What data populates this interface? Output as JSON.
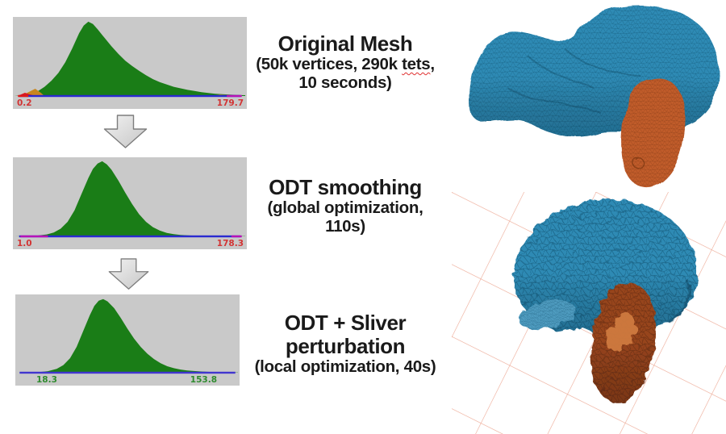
{
  "steps": [
    {
      "title1": "Original Mesh",
      "title2": "",
      "sub1_pre": "(50k vertices, 290k ",
      "sub1_word": "tets",
      "sub1_post": ",",
      "sub2": "10 seconds)"
    },
    {
      "title1": "ODT smoothing",
      "title2": "",
      "sub1_pre": "(global optimization,",
      "sub1_word": "",
      "sub1_post": "",
      "sub2": "110s)"
    },
    {
      "title1": "ODT + Sliver",
      "title2": "perturbation",
      "sub1_pre": "(local optimization, 40s)",
      "sub1_word": "",
      "sub1_post": "",
      "sub2": ""
    }
  ],
  "chart_data": [
    {
      "type": "area",
      "title": "dihedral-angle quality histogram (original mesh)",
      "min_label": "0.2",
      "max_label": "179.7",
      "label_color": "#d23434",
      "fill": "#1a7d17",
      "xlim": [
        0.2,
        179.7
      ],
      "values": [
        [
          0,
          0
        ],
        [
          0.04,
          0.01
        ],
        [
          0.07,
          0.03
        ],
        [
          0.1,
          0.06
        ],
        [
          0.13,
          0.12
        ],
        [
          0.16,
          0.2
        ],
        [
          0.19,
          0.3
        ],
        [
          0.22,
          0.44
        ],
        [
          0.25,
          0.62
        ],
        [
          0.28,
          0.82
        ],
        [
          0.3,
          0.92
        ],
        [
          0.32,
          0.97
        ],
        [
          0.34,
          0.94
        ],
        [
          0.36,
          0.87
        ],
        [
          0.39,
          0.76
        ],
        [
          0.42,
          0.65
        ],
        [
          0.45,
          0.55
        ],
        [
          0.48,
          0.46
        ],
        [
          0.51,
          0.39
        ],
        [
          0.54,
          0.33
        ],
        [
          0.57,
          0.27
        ],
        [
          0.6,
          0.22
        ],
        [
          0.63,
          0.18
        ],
        [
          0.66,
          0.15
        ],
        [
          0.69,
          0.12
        ],
        [
          0.72,
          0.1
        ],
        [
          0.75,
          0.08
        ],
        [
          0.78,
          0.065
        ],
        [
          0.81,
          0.05
        ],
        [
          0.84,
          0.04
        ],
        [
          0.87,
          0.03
        ],
        [
          0.9,
          0.024
        ],
        [
          0.93,
          0.018
        ],
        [
          0.96,
          0.014
        ],
        [
          1,
          0.01
        ]
      ],
      "accents": [
        {
          "color": "#c8861e",
          "points": [
            [
              0.03,
              0
            ],
            [
              0.06,
              0.05
            ],
            [
              0.09,
              0.095
            ],
            [
              0.115,
              0.04
            ],
            [
              0.13,
              0
            ]
          ]
        },
        {
          "color": "#e01818",
          "points": [
            [
              0.012,
              0
            ],
            [
              0.045,
              0.042
            ],
            [
              0.075,
              0.015
            ],
            [
              0.09,
              0
            ]
          ]
        },
        {
          "color": "#c8861e",
          "points": [
            [
              0.85,
              0
            ],
            [
              0.89,
              0.018
            ],
            [
              0.94,
              0.01
            ],
            [
              0.97,
              0
            ]
          ]
        }
      ],
      "baseline": [
        {
          "x1": 0.02,
          "x2": 0.98,
          "color": "#2a2ad0"
        },
        {
          "x1": 0.015,
          "x2": 0.06,
          "color": "#e01818"
        },
        {
          "x1": 0.92,
          "x2": 0.985,
          "color": "#b812b8"
        }
      ]
    },
    {
      "type": "area",
      "title": "dihedral-angle quality histogram (ODT smoothing)",
      "min_label": "1.0",
      "max_label": "178.3",
      "label_color": "#d23434",
      "fill": "#1a7d17",
      "xlim": [
        1.0,
        178.3
      ],
      "values": [
        [
          0,
          0
        ],
        [
          0.05,
          0.004
        ],
        [
          0.1,
          0.01
        ],
        [
          0.14,
          0.025
        ],
        [
          0.17,
          0.05
        ],
        [
          0.2,
          0.1
        ],
        [
          0.23,
          0.19
        ],
        [
          0.26,
          0.34
        ],
        [
          0.29,
          0.55
        ],
        [
          0.32,
          0.76
        ],
        [
          0.34,
          0.88
        ],
        [
          0.36,
          0.95
        ],
        [
          0.38,
          0.98
        ],
        [
          0.4,
          0.94
        ],
        [
          0.42,
          0.87
        ],
        [
          0.45,
          0.73
        ],
        [
          0.48,
          0.57
        ],
        [
          0.51,
          0.42
        ],
        [
          0.54,
          0.29
        ],
        [
          0.57,
          0.19
        ],
        [
          0.6,
          0.12
        ],
        [
          0.63,
          0.075
        ],
        [
          0.66,
          0.045
        ],
        [
          0.69,
          0.028
        ],
        [
          0.72,
          0.018
        ],
        [
          0.76,
          0.012
        ],
        [
          0.8,
          0.008
        ],
        [
          0.85,
          0.006
        ],
        [
          0.9,
          0.004
        ],
        [
          0.95,
          0.003
        ],
        [
          1,
          0.002
        ]
      ],
      "accents": [],
      "baseline": [
        {
          "x1": 0.02,
          "x2": 0.98,
          "color": "#2a2ad0"
        },
        {
          "x1": 0.025,
          "x2": 0.145,
          "color": "#b812b8"
        },
        {
          "x1": 0.94,
          "x2": 0.985,
          "color": "#b812b8"
        }
      ]
    },
    {
      "type": "area",
      "title": "dihedral-angle quality histogram (ODT + sliver perturbation)",
      "min_label": "18.3",
      "max_label": "153.8",
      "label_color": "#2e8b2e",
      "fill": "#1a7d17",
      "xlim": [
        18.3,
        153.8
      ],
      "values": [
        [
          0,
          0
        ],
        [
          0.06,
          0.003
        ],
        [
          0.1,
          0.008
        ],
        [
          0.14,
          0.02
        ],
        [
          0.18,
          0.05
        ],
        [
          0.21,
          0.1
        ],
        [
          0.24,
          0.19
        ],
        [
          0.27,
          0.34
        ],
        [
          0.3,
          0.55
        ],
        [
          0.33,
          0.76
        ],
        [
          0.35,
          0.88
        ],
        [
          0.37,
          0.95
        ],
        [
          0.39,
          0.97
        ],
        [
          0.41,
          0.94
        ],
        [
          0.44,
          0.85
        ],
        [
          0.47,
          0.72
        ],
        [
          0.5,
          0.58
        ],
        [
          0.53,
          0.45
        ],
        [
          0.56,
          0.34
        ],
        [
          0.59,
          0.25
        ],
        [
          0.62,
          0.18
        ],
        [
          0.65,
          0.125
        ],
        [
          0.68,
          0.085
        ],
        [
          0.71,
          0.06
        ],
        [
          0.74,
          0.042
        ],
        [
          0.77,
          0.03
        ],
        [
          0.8,
          0.022
        ],
        [
          0.84,
          0.015
        ],
        [
          0.88,
          0.01
        ],
        [
          0.92,
          0.007
        ],
        [
          0.96,
          0.004
        ],
        [
          1,
          0.002
        ]
      ],
      "accents": [],
      "baseline": [
        {
          "x1": 0.012,
          "x2": 0.988,
          "color": "#4136cf"
        }
      ]
    }
  ],
  "colors": {
    "panel_bg": "#c9c9c9",
    "hist_green": "#1a7d17",
    "text_color": "#1a1a1a",
    "squiggle_red": "#e03030",
    "arrow_fill_light": "#f2f2f2",
    "arrow_fill_dark": "#c6c6c6",
    "arrow_stroke": "#7d7d7d",
    "mesh_blue": "#2e8ab4",
    "mesh_blue_wire": "#10506e",
    "mesh_blue_fold": "#4f9cc0",
    "mesh_orange": "#c05b2b",
    "mesh_orange_wire": "#7e3a14",
    "mesh_brown": "#97441c",
    "mesh_brown_wire": "#5e2a10",
    "mesh_brown_light": "#cf7a40",
    "grid_salmon": "#edaa96"
  }
}
